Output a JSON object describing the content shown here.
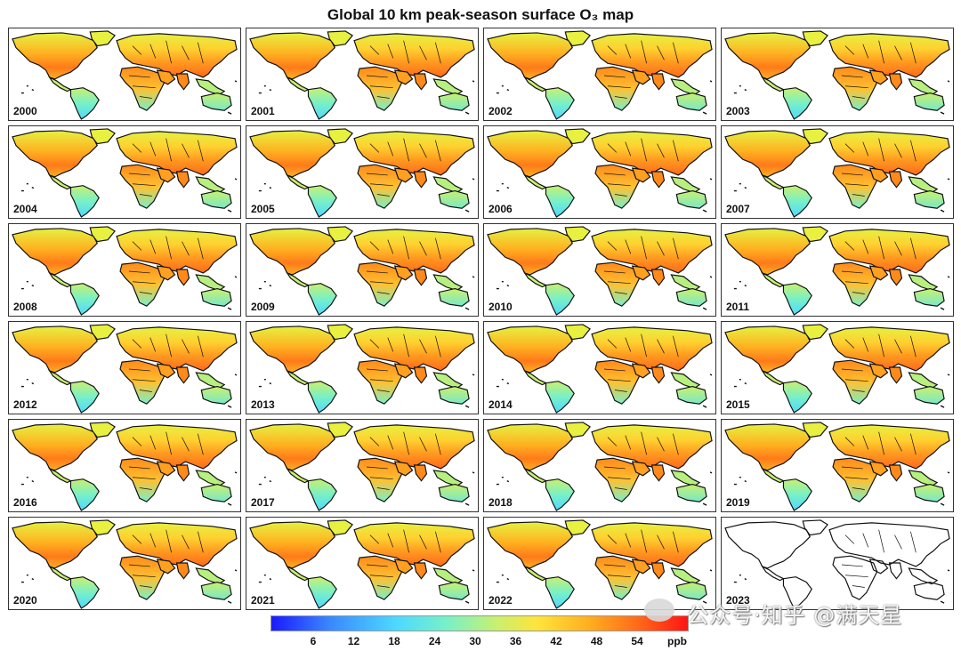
{
  "title": "Global 10 km peak-season surface O₃ map",
  "panels": [
    {
      "year": "2000",
      "filled": true
    },
    {
      "year": "2001",
      "filled": true
    },
    {
      "year": "2002",
      "filled": true
    },
    {
      "year": "2003",
      "filled": true
    },
    {
      "year": "2004",
      "filled": true
    },
    {
      "year": "2005",
      "filled": true
    },
    {
      "year": "2006",
      "filled": true
    },
    {
      "year": "2007",
      "filled": true
    },
    {
      "year": "2008",
      "filled": true
    },
    {
      "year": "2009",
      "filled": true
    },
    {
      "year": "2010",
      "filled": true
    },
    {
      "year": "2011",
      "filled": true
    },
    {
      "year": "2012",
      "filled": true
    },
    {
      "year": "2013",
      "filled": true
    },
    {
      "year": "2014",
      "filled": true
    },
    {
      "year": "2015",
      "filled": true
    },
    {
      "year": "2016",
      "filled": true
    },
    {
      "year": "2017",
      "filled": true
    },
    {
      "year": "2018",
      "filled": true
    },
    {
      "year": "2019",
      "filled": true
    },
    {
      "year": "2020",
      "filled": true
    },
    {
      "year": "2021",
      "filled": true
    },
    {
      "year": "2022",
      "filled": true
    },
    {
      "year": "2023",
      "filled": false
    }
  ],
  "colorbar": {
    "ticks": [
      "6",
      "12",
      "18",
      "24",
      "30",
      "36",
      "42",
      "48",
      "54"
    ],
    "unit": "ppb",
    "colors": [
      "#1a1aff",
      "#3a88ff",
      "#4dd9ff",
      "#78f0c8",
      "#c8f070",
      "#ffe43a",
      "#ffb020",
      "#ff6a1a",
      "#ff1414"
    ]
  },
  "watermark": "公众号·知乎 @满天星"
}
